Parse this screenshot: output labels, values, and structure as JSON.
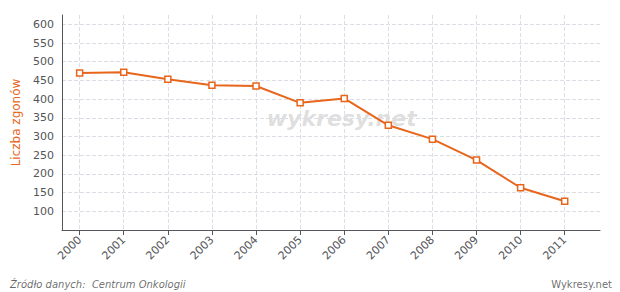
{
  "chart_data": {
    "type": "line",
    "ylabel": "Liczba zgonów",
    "x": [
      2000,
      2001,
      2002,
      2003,
      2004,
      2005,
      2006,
      2007,
      2008,
      2009,
      2010,
      2011
    ],
    "values": [
      470,
      472,
      453,
      437,
      435,
      390,
      402,
      330,
      293,
      237,
      163,
      127
    ],
    "color": "#e8651c",
    "marker": "square",
    "xlim": [
      1999.6,
      2011.8
    ],
    "xticks": [
      2000,
      2001,
      2002,
      2003,
      2004,
      2005,
      2006,
      2007,
      2008,
      2009,
      2010,
      2011
    ],
    "ylim": [
      50,
      625
    ],
    "yticks": [
      100,
      150,
      200,
      250,
      300,
      350,
      400,
      450,
      500,
      550,
      600
    ],
    "grid": true,
    "annotations": [
      "wykresy.net",
      "Źródło danych:  Centrum Onkologii",
      "Wykresy.net"
    ]
  }
}
